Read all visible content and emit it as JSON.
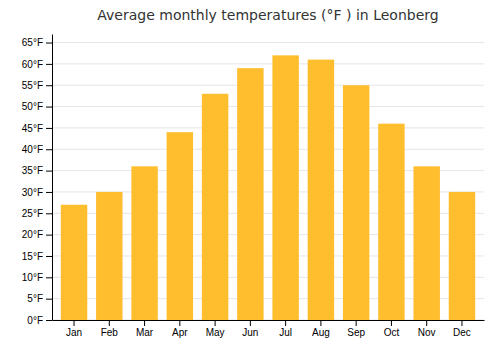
{
  "chart_data": {
    "type": "bar",
    "title": "Average monthly temperatures (°F ) in Leonberg",
    "categories": [
      "Jan",
      "Feb",
      "Mar",
      "Apr",
      "May",
      "Jun",
      "Jul",
      "Aug",
      "Sep",
      "Oct",
      "Nov",
      "Dec"
    ],
    "values": [
      27,
      30,
      36,
      44,
      53,
      59,
      62,
      61,
      55,
      46,
      36,
      30
    ],
    "color": "#FFBE2D",
    "ylim": [
      0,
      67
    ],
    "yticks": [
      {
        "value": 0,
        "label": "0°F"
      },
      {
        "value": 5,
        "label": "5°F"
      },
      {
        "value": 10,
        "label": "10°F"
      },
      {
        "value": 15,
        "label": "15°F"
      },
      {
        "value": 20,
        "label": "20°F"
      },
      {
        "value": 25,
        "label": "25°F"
      },
      {
        "value": 30,
        "label": "30°F"
      },
      {
        "value": 35,
        "label": "35°F"
      },
      {
        "value": 40,
        "label": "40°F"
      },
      {
        "value": 45,
        "label": "45°F"
      },
      {
        "value": 50,
        "label": "50°F"
      },
      {
        "value": 55,
        "label": "55°F"
      },
      {
        "value": 60,
        "label": "60°F"
      },
      {
        "value": 65,
        "label": "65°F"
      }
    ],
    "grid": true
  }
}
